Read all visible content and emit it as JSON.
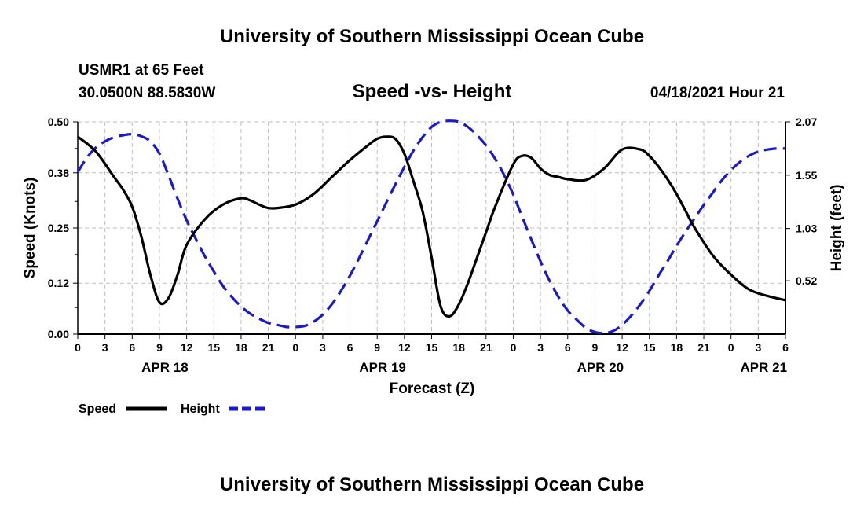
{
  "header": {
    "title": "University of Southern Mississippi Ocean Cube",
    "station": "USMR1 at 65 Feet",
    "coords": "30.0500N  88.5830W",
    "datetime": "04/18/2021 Hour 21",
    "footer_title": "University of Southern Mississippi Ocean Cube"
  },
  "colors": {
    "speed": "#000000",
    "height": "#1a1acc"
  },
  "chart_data": {
    "type": "line",
    "title": "Speed -vs- Height",
    "xlabel": "Forecast (Z)",
    "ylabel": "Speed (Knots)",
    "y2label": "Height (feet)",
    "x_unit": "forecast hours since APR 18 00Z",
    "xlim": [
      0,
      78
    ],
    "ylim": [
      0,
      0.5
    ],
    "y2lim": [
      0.0,
      2.07
    ],
    "yticks": [
      0.0,
      0.12,
      0.25,
      0.38,
      0.5
    ],
    "ytick_labels": [
      "0.00",
      "0.12",
      "0.25",
      "0.38",
      "0.50"
    ],
    "y2ticks": [
      0.52,
      1.03,
      1.55,
      2.07
    ],
    "y2tick_labels": [
      "0.52",
      "1.03",
      "1.55",
      "2.07"
    ],
    "xticks": [
      0,
      3,
      6,
      9,
      12,
      15,
      18,
      21,
      24,
      27,
      30,
      33,
      36,
      39,
      42,
      45,
      48,
      51,
      54,
      57,
      60,
      63,
      66,
      69,
      72,
      75,
      78
    ],
    "xtick_labels": [
      "0",
      "3",
      "6",
      "9",
      "12",
      "15",
      "18",
      "21",
      "0",
      "3",
      "6",
      "9",
      "12",
      "15",
      "18",
      "21",
      "0",
      "3",
      "6",
      "9",
      "12",
      "15",
      "18",
      "21",
      "0",
      "3",
      "6"
    ],
    "date_labels": [
      {
        "text": "APR 18",
        "x": 9.6
      },
      {
        "text": "APR 19",
        "x": 33.6
      },
      {
        "text": "APR 20",
        "x": 57.6
      },
      {
        "text": "APR 21",
        "x": 75.6
      }
    ],
    "legend": [
      "Speed",
      "Height"
    ],
    "series": [
      {
        "name": "Speed",
        "axis": "left",
        "style": "solid",
        "x": [
          0,
          2,
          4,
          5,
          6,
          7,
          8,
          9,
          10,
          11,
          12,
          14,
          16,
          18,
          19,
          20,
          21,
          22,
          24,
          26,
          28,
          30,
          32,
          33,
          34,
          35,
          36,
          37,
          38,
          39,
          40,
          41,
          42,
          43,
          44,
          45,
          46,
          48,
          49,
          50,
          51,
          52,
          53,
          54,
          56,
          58,
          60,
          62,
          63,
          64,
          65,
          66,
          67,
          68,
          70,
          72,
          74,
          76,
          78
        ],
        "values": [
          0.465,
          0.43,
          0.37,
          0.34,
          0.3,
          0.23,
          0.14,
          0.075,
          0.085,
          0.14,
          0.21,
          0.27,
          0.305,
          0.32,
          0.315,
          0.305,
          0.297,
          0.297,
          0.305,
          0.33,
          0.37,
          0.41,
          0.445,
          0.46,
          0.465,
          0.46,
          0.425,
          0.36,
          0.29,
          0.18,
          0.065,
          0.042,
          0.07,
          0.12,
          0.18,
          0.24,
          0.3,
          0.4,
          0.42,
          0.415,
          0.39,
          0.375,
          0.37,
          0.365,
          0.363,
          0.39,
          0.435,
          0.435,
          0.42,
          0.395,
          0.365,
          0.33,
          0.29,
          0.25,
          0.185,
          0.14,
          0.105,
          0.09,
          0.08
        ]
      },
      {
        "name": "Height",
        "axis": "right",
        "style": "dashed",
        "x": [
          0,
          1,
          2,
          3,
          4,
          5,
          6,
          7,
          8,
          9,
          10,
          11,
          12,
          13,
          14,
          15,
          16,
          17,
          18,
          19,
          20,
          21,
          22,
          23,
          24,
          25,
          26,
          27,
          28,
          29,
          30,
          31,
          32,
          33,
          34,
          35,
          36,
          37,
          38,
          39,
          40,
          41,
          42,
          43,
          44,
          45,
          46,
          47,
          48,
          49,
          50,
          51,
          52,
          53,
          54,
          55,
          56,
          57,
          58,
          59,
          60,
          61,
          62,
          63,
          64,
          65,
          66,
          67,
          68,
          69,
          70,
          71,
          72,
          73,
          74,
          75,
          76,
          77,
          78
        ],
        "values": [
          1.58,
          1.72,
          1.82,
          1.88,
          1.92,
          1.94,
          1.95,
          1.93,
          1.88,
          1.76,
          1.55,
          1.32,
          1.11,
          0.93,
          0.76,
          0.61,
          0.47,
          0.36,
          0.27,
          0.2,
          0.15,
          0.11,
          0.09,
          0.07,
          0.07,
          0.08,
          0.12,
          0.19,
          0.29,
          0.42,
          0.57,
          0.74,
          0.92,
          1.1,
          1.28,
          1.46,
          1.63,
          1.79,
          1.92,
          2.02,
          2.07,
          2.08,
          2.07,
          2.02,
          1.94,
          1.84,
          1.71,
          1.55,
          1.36,
          1.14,
          0.92,
          0.71,
          0.52,
          0.36,
          0.23,
          0.14,
          0.06,
          0.02,
          0.01,
          0.03,
          0.09,
          0.18,
          0.29,
          0.42,
          0.57,
          0.71,
          0.86,
          1.0,
          1.13,
          1.26,
          1.38,
          1.5,
          1.6,
          1.68,
          1.74,
          1.78,
          1.8,
          1.81,
          1.81
        ]
      }
    ]
  }
}
